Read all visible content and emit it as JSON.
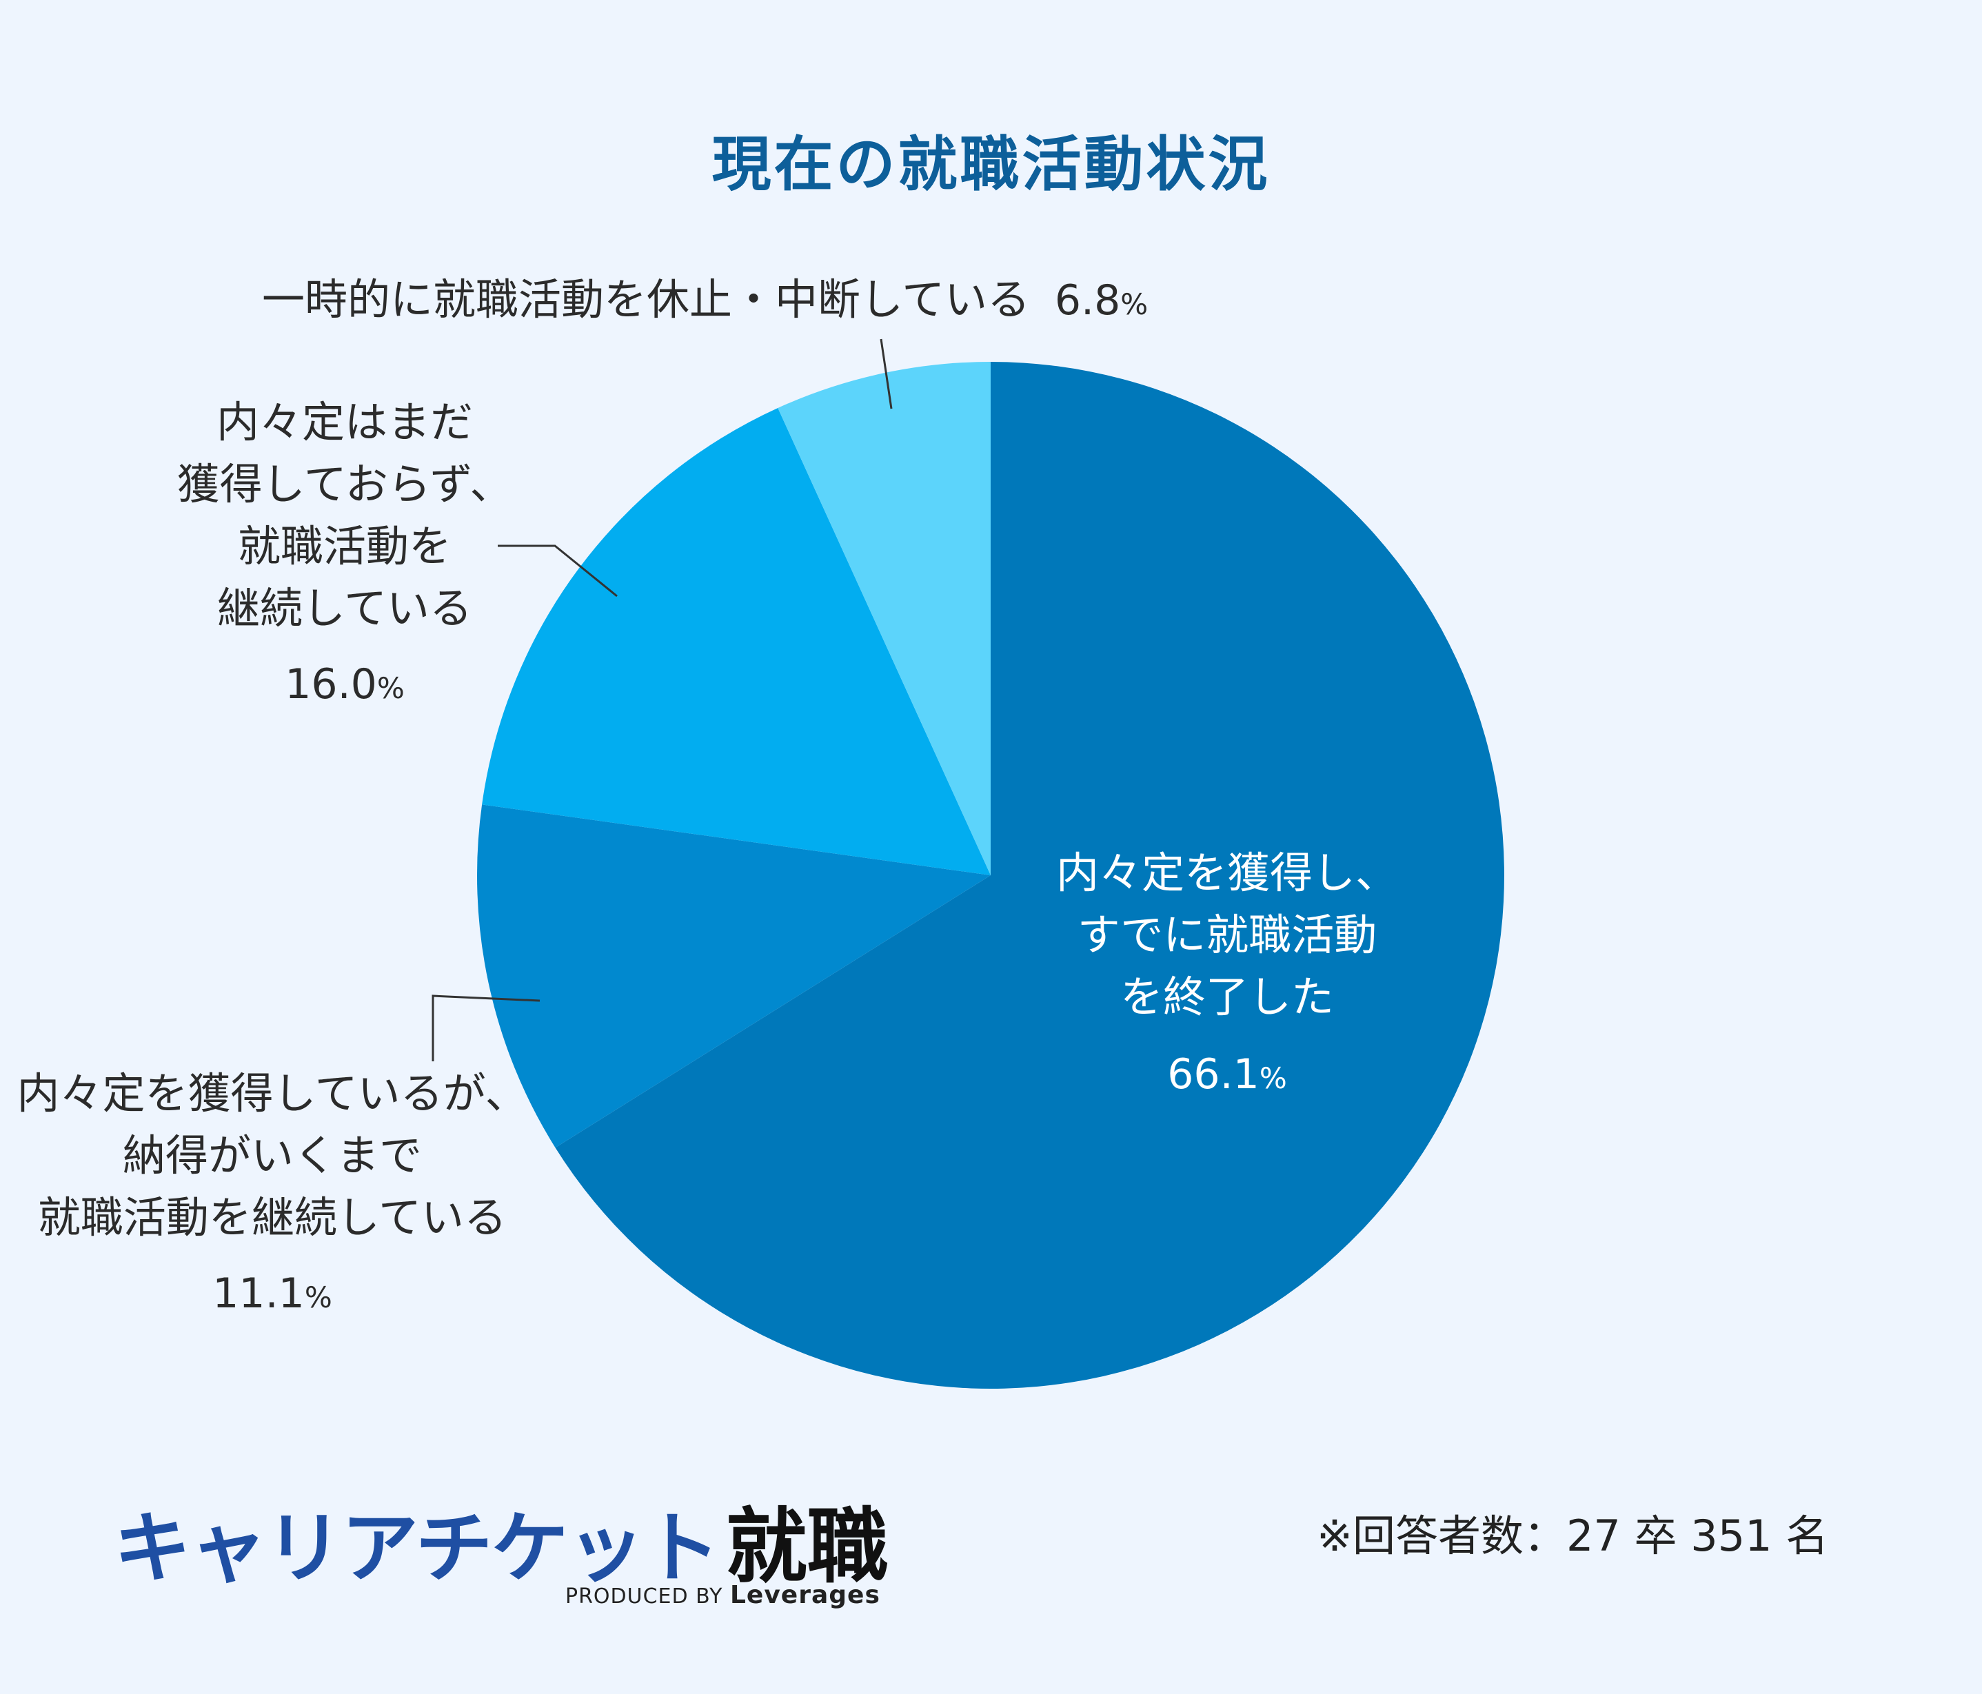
{
  "chart_data": {
    "type": "pie",
    "title": "現在の就職活動状況",
    "start_angle": "12 o'clock",
    "direction": "clockwise",
    "slices": [
      {
        "label_lines": [
          "内々定を獲得し、",
          "すでに就職活動",
          "を終了した"
        ],
        "value": 66.1,
        "value_text": "66.1",
        "unit": "%",
        "color": "#0078ba"
      },
      {
        "label_lines": [
          "内々定を獲得しているが、",
          "納得がいくまで",
          "就職活動を継続している"
        ],
        "value": 11.1,
        "value_text": "11.1",
        "unit": "%",
        "color": "#0189cf"
      },
      {
        "label_lines": [
          "内々定はまだ",
          "獲得しておらず、",
          "就職活動を",
          "継続している"
        ],
        "value": 16.0,
        "value_text": "16.0",
        "unit": "%",
        "color": "#02adf0"
      },
      {
        "label_lines": [
          "一時的に就職活動を休止・中断している"
        ],
        "value": 6.8,
        "value_text": "6.8",
        "unit": "%",
        "color": "#5cd4fb"
      }
    ]
  },
  "branding": {
    "logo_text": "キャリアチケット",
    "logo_kanji": "就職",
    "produced_by": "PRODUCED BY",
    "company": "Leverages"
  },
  "footnote": "※回答者数：27 卒 351 名"
}
